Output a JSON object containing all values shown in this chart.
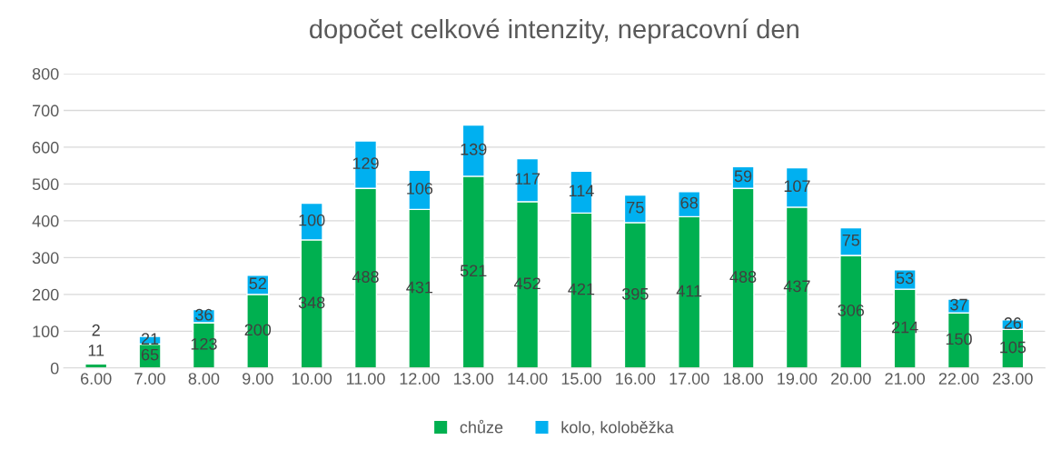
{
  "chart_data": {
    "type": "bar",
    "title": "dopočet celkové intenzity, nepracovní den",
    "categories": [
      "6.00",
      "7.00",
      "8.00",
      "9.00",
      "10.00",
      "11.00",
      "12.00",
      "13.00",
      "14.00",
      "15.00",
      "16.00",
      "17.00",
      "18.00",
      "19.00",
      "20.00",
      "21.00",
      "22.00",
      "23.00"
    ],
    "series": [
      {
        "name": "chůze",
        "color": "#00b050",
        "values": [
          11,
          65,
          123,
          200,
          348,
          488,
          431,
          521,
          452,
          421,
          395,
          411,
          488,
          437,
          306,
          214,
          150,
          105
        ]
      },
      {
        "name": "kolo, koloběžka",
        "color": "#00b0f0",
        "values": [
          2,
          21,
          36,
          52,
          100,
          129,
          106,
          139,
          117,
          114,
          75,
          68,
          59,
          107,
          75,
          53,
          37,
          26
        ]
      }
    ],
    "stacked": true,
    "data_labels": true,
    "ylim": [
      0,
      800
    ],
    "yticks": [
      0,
      100,
      200,
      300,
      400,
      500,
      600,
      700,
      800
    ],
    "grid": "y",
    "legend": "bottom"
  }
}
